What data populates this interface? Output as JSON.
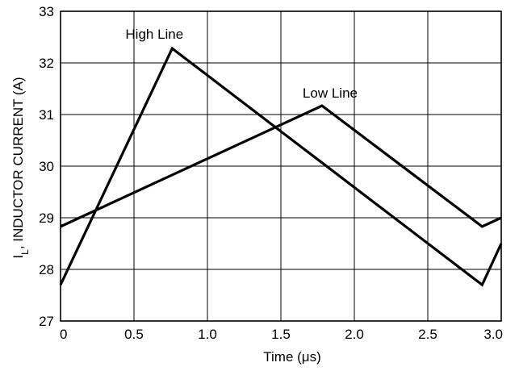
{
  "chart_data": {
    "type": "line",
    "xlabel": "Time (μs)",
    "ylabel": {
      "prefix": "I",
      "subscript": "L",
      "suffix": ", INDUCTOR CURRENT (A)"
    },
    "xlim": [
      0,
      3.0
    ],
    "ylim": [
      27,
      33
    ],
    "x_ticks": [
      "0",
      "0.5",
      "1.0",
      "1.5",
      "2.0",
      "2.5",
      "3.0"
    ],
    "y_ticks": [
      "27",
      "28",
      "29",
      "30",
      "31",
      "32",
      "33"
    ],
    "grid": true,
    "series": [
      {
        "name": "High Line",
        "points": [
          [
            0,
            27.7
          ],
          [
            0.76,
            32.28
          ],
          [
            2.87,
            27.7
          ],
          [
            3.0,
            28.5
          ]
        ]
      },
      {
        "name": "Low Line",
        "points": [
          [
            0,
            28.83
          ],
          [
            1.78,
            31.17
          ],
          [
            2.87,
            28.83
          ],
          [
            3.0,
            29.0
          ]
        ]
      }
    ]
  }
}
